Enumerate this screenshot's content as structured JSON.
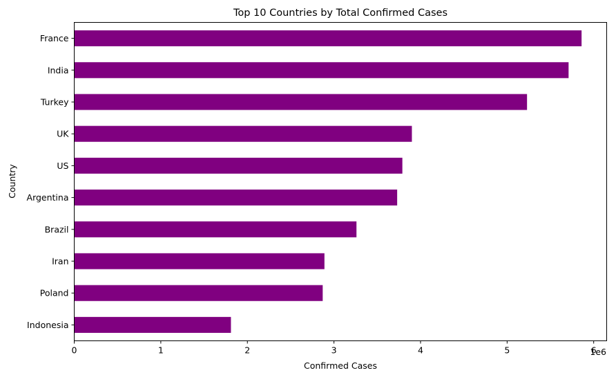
{
  "chart_data": {
    "type": "bar",
    "orientation": "horizontal",
    "title": "Top 10 Countries by Total Confirmed Cases",
    "xlabel": "Confirmed Cases",
    "ylabel": "Country",
    "x_scale_label": "1e6",
    "x_ticks": [
      0,
      1,
      2,
      3,
      4,
      5,
      6
    ],
    "xlim": [
      0,
      6150000
    ],
    "grid": false,
    "bar_color": "#800080",
    "categories": [
      "France",
      "India",
      "Turkey",
      "UK",
      "US",
      "Argentina",
      "Brazil",
      "Iran",
      "Poland",
      "Indonesia"
    ],
    "values": [
      5860000,
      5710000,
      5230000,
      3900000,
      3790000,
      3730000,
      3260000,
      2890000,
      2870000,
      1810000
    ]
  }
}
